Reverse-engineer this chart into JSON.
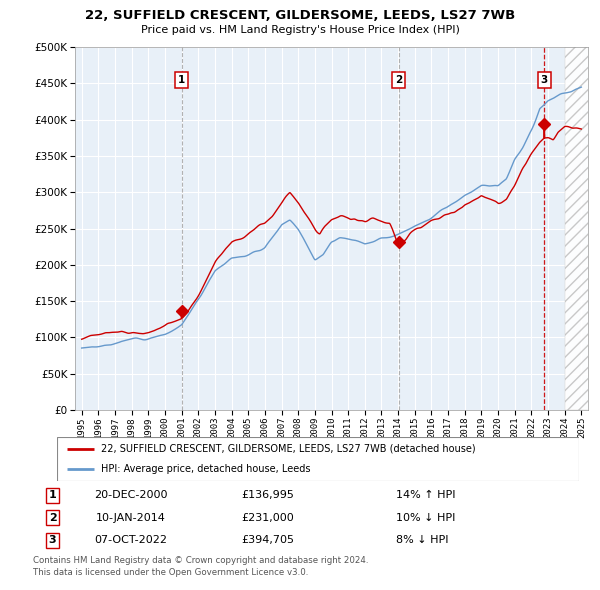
{
  "title_line1": "22, SUFFIELD CRESCENT, GILDERSOME, LEEDS, LS27 7WB",
  "title_line2": "Price paid vs. HM Land Registry's House Price Index (HPI)",
  "hpi_label": "HPI: Average price, detached house, Leeds",
  "property_label": "22, SUFFIELD CRESCENT, GILDERSOME, LEEDS, LS27 7WB (detached house)",
  "hpi_color": "#6699cc",
  "property_color": "#cc0000",
  "chart_bg": "#e8f0f8",
  "grid_color": "#ffffff",
  "transactions": [
    {
      "num": 1,
      "date": "20-DEC-2000",
      "price": 136995,
      "x_year": 2001.0,
      "pct": "14%",
      "dir": "↑"
    },
    {
      "num": 2,
      "date": "10-JAN-2014",
      "price": 231000,
      "x_year": 2014.05,
      "pct": "10%",
      "dir": "↓"
    },
    {
      "num": 3,
      "date": "07-OCT-2022",
      "price": 394705,
      "x_year": 2022.77,
      "pct": "8%",
      "dir": "↓"
    }
  ],
  "footer_line1": "Contains HM Land Registry data © Crown copyright and database right 2024.",
  "footer_line2": "This data is licensed under the Open Government Licence v3.0.",
  "ylim": [
    0,
    500000
  ],
  "xlim_start": 1994.6,
  "xlim_end": 2025.4,
  "yticks": [
    0,
    50000,
    100000,
    150000,
    200000,
    250000,
    300000,
    350000,
    400000,
    450000,
    500000
  ],
  "xticks": [
    1995,
    1996,
    1997,
    1998,
    1999,
    2000,
    2001,
    2002,
    2003,
    2004,
    2005,
    2006,
    2007,
    2008,
    2009,
    2010,
    2011,
    2012,
    2013,
    2014,
    2015,
    2016,
    2017,
    2018,
    2019,
    2020,
    2021,
    2022,
    2023,
    2024,
    2025
  ]
}
